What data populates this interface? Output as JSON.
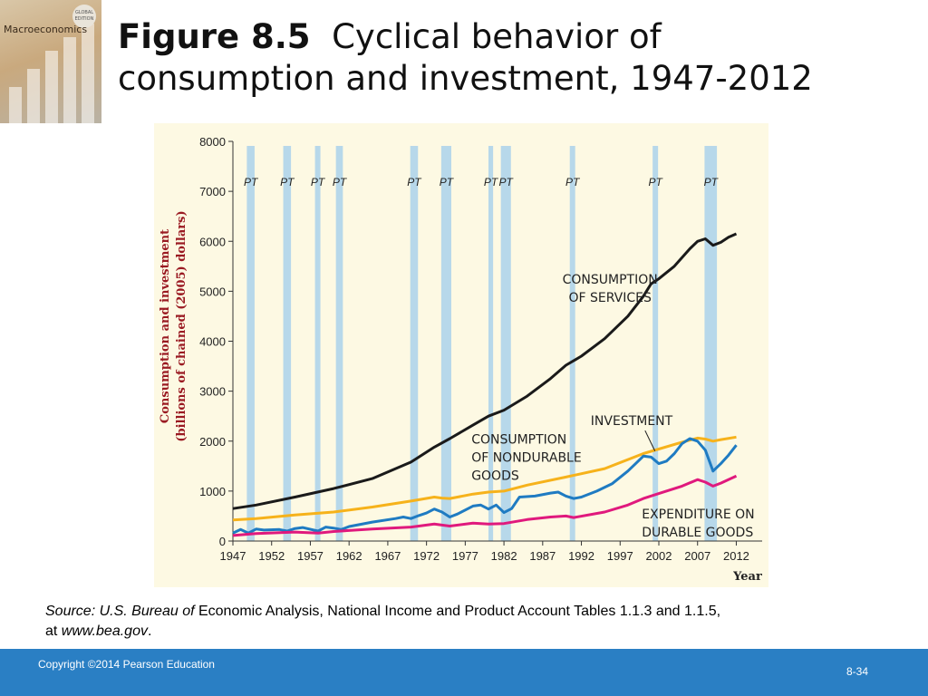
{
  "book": {
    "title": "Macroeconomics",
    "edition_badge": "GLOBAL EDITION"
  },
  "slide": {
    "figure_label": "Figure 8.5",
    "title_line1": "Cyclical behavior of",
    "title_line2": "consumption and investment, 1947-2012"
  },
  "source": {
    "prefix_italic": "Source: U.S. Bureau of",
    "body": " Economic Analysis, National Income and Product Account Tables 1.1.3 and 1.1.5,",
    "line2_prefix": "at ",
    "url_italic": "www.bea.gov",
    "suffix": "."
  },
  "footer": {
    "copyright": "Copyright ©2014 Pearson Education",
    "page_number": "8-34"
  },
  "colors": {
    "services": "#1a1a1a",
    "nondurables": "#f6b21b",
    "investment": "#1f7bc2",
    "durables": "#e0197d",
    "recession_band": "#b7d8ea",
    "footer": "#2a7fc4",
    "panel": "#fdf9e3"
  },
  "chart_data": {
    "type": "line",
    "xlabel": "Year",
    "ylabel_line1": "Consumption and investment",
    "ylabel_line2": "(billions of chained (2005) dollars)",
    "xlim": [
      1947,
      2013
    ],
    "ylim": [
      0,
      8000
    ],
    "y_ticks": [
      0,
      1000,
      2000,
      3000,
      4000,
      5000,
      6000,
      7000,
      8000
    ],
    "x_ticks": [
      1947,
      1952,
      1957,
      1962,
      1967,
      1972,
      1977,
      1982,
      1987,
      1992,
      1997,
      2002,
      2007,
      2012
    ],
    "recessions": [
      {
        "label": "PT",
        "start": 1948.8,
        "end": 1949.8
      },
      {
        "label": "PT",
        "start": 1953.5,
        "end": 1954.5
      },
      {
        "label": "PT",
        "start": 1957.6,
        "end": 1958.3
      },
      {
        "label": "PT",
        "start": 1960.3,
        "end": 1961.2
      },
      {
        "label": "PT",
        "start": 1969.9,
        "end": 1970.9
      },
      {
        "label": "PT",
        "start": 1973.9,
        "end": 1975.2
      },
      {
        "label": "PT",
        "start": 1980.0,
        "end": 1980.6
      },
      {
        "label": "PT",
        "start": 1981.6,
        "end": 1982.9
      },
      {
        "label": "PT",
        "start": 1990.5,
        "end": 1991.2
      },
      {
        "label": "PT",
        "start": 2001.2,
        "end": 2001.9
      },
      {
        "label": "PT",
        "start": 2007.9,
        "end": 2009.5
      }
    ],
    "annotations": [
      {
        "lines": [
          "CONSUMPTION",
          "OF SERVICES"
        ],
        "x": 1995.7,
        "y": 5150,
        "anchor": "middle"
      },
      {
        "lines": [
          "INVESTMENT"
        ],
        "x": 1993.2,
        "y": 2320,
        "anchor": "start"
      },
      {
        "lines": [
          "CONSUMPTION",
          "OF NONDURABLE",
          "GOODS"
        ],
        "x": 1977.8,
        "y": 1950,
        "anchor": "start"
      },
      {
        "lines": [
          "EXPENDITURE ON",
          "DURABLE GOODS"
        ],
        "x": 1999.8,
        "y": 450,
        "anchor": "start"
      }
    ],
    "series": [
      {
        "name": "CONSUMPTION OF SERVICES",
        "color": "#1a1a1a",
        "x": [
          1947,
          1950,
          1955,
          1960,
          1965,
          1970,
          1973,
          1975,
          1978,
          1980,
          1982,
          1985,
          1988,
          1990,
          1992,
          1995,
          1998,
          2000,
          2001,
          2002,
          2004,
          2006,
          2007,
          2008,
          2009,
          2010,
          2011,
          2012
        ],
        "y": [
          650,
          720,
          880,
          1050,
          1250,
          1580,
          1880,
          2050,
          2320,
          2500,
          2620,
          2900,
          3250,
          3520,
          3700,
          4050,
          4500,
          4900,
          5150,
          5250,
          5500,
          5850,
          6000,
          6050,
          5920,
          5980,
          6080,
          6150
        ]
      },
      {
        "name": "CONSUMPTION OF NONDURABLE GOODS",
        "color": "#f6b21b",
        "x": [
          1947,
          1950,
          1955,
          1960,
          1965,
          1970,
          1973,
          1974,
          1975,
          1978,
          1980,
          1982,
          1985,
          1990,
          1995,
          2000,
          2005,
          2007,
          2008,
          2009,
          2010,
          2012
        ],
        "y": [
          420,
          450,
          520,
          580,
          680,
          800,
          880,
          860,
          850,
          940,
          980,
          1000,
          1120,
          1280,
          1450,
          1750,
          1980,
          2060,
          2040,
          2000,
          2030,
          2080
        ]
      },
      {
        "name": "INVESTMENT",
        "color": "#1f7bc2",
        "x": [
          1947,
          1948,
          1949,
          1950,
          1951,
          1953,
          1954,
          1955,
          1956,
          1958,
          1959,
          1960,
          1961,
          1962,
          1965,
          1968,
          1969,
          1970,
          1971,
          1972,
          1973,
          1974,
          1975,
          1976,
          1978,
          1979,
          1980,
          1981,
          1982,
          1983,
          1984,
          1986,
          1988,
          1989,
          1990,
          1991,
          1992,
          1994,
          1996,
          1998,
          1999,
          2000,
          2001,
          2002,
          2003,
          2004,
          2005,
          2006,
          2007,
          2008,
          2009,
          2010,
          2011,
          2012
        ],
        "y": [
          160,
          230,
          160,
          240,
          220,
          230,
          200,
          250,
          270,
          200,
          280,
          260,
          230,
          290,
          380,
          450,
          480,
          450,
          510,
          560,
          640,
          580,
          480,
          540,
          700,
          720,
          640,
          720,
          570,
          650,
          880,
          900,
          960,
          980,
          900,
          850,
          880,
          1000,
          1150,
          1400,
          1550,
          1700,
          1680,
          1550,
          1600,
          1750,
          1950,
          2050,
          2000,
          1820,
          1400,
          1550,
          1720,
          1920
        ]
      },
      {
        "name": "EXPENDITURE ON DURABLE GOODS",
        "color": "#e0197d",
        "x": [
          1947,
          1950,
          1955,
          1958,
          1960,
          1965,
          1970,
          1973,
          1975,
          1978,
          1980,
          1982,
          1985,
          1988,
          1990,
          1991,
          1995,
          1998,
          2000,
          2002,
          2005,
          2007,
          2008,
          2009,
          2010,
          2012
        ],
        "y": [
          110,
          150,
          180,
          160,
          190,
          240,
          280,
          340,
          300,
          360,
          340,
          350,
          430,
          480,
          500,
          470,
          580,
          720,
          850,
          950,
          1100,
          1230,
          1180,
          1100,
          1160,
          1300
        ]
      }
    ]
  }
}
